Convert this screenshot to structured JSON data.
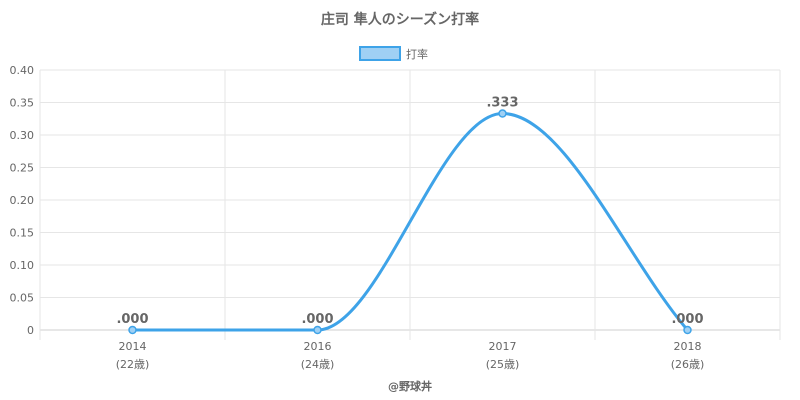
{
  "chart_data": {
    "type": "line",
    "title": "庄司 隼人のシーズン打率",
    "categories": [
      "2014",
      "2016",
      "2017",
      "2018"
    ],
    "category_sublabels": [
      "(22歳)",
      "(24歳)",
      "(25歳)",
      "(26歳)"
    ],
    "series": [
      {
        "name": "打率",
        "values": [
          0.0,
          0.0,
          0.333,
          0.0
        ],
        "labels": [
          ".000",
          ".000",
          ".333",
          ".000"
        ]
      }
    ],
    "ylim": [
      0,
      0.4
    ],
    "yticks": [
      0,
      0.05,
      0.1,
      0.15,
      0.2,
      0.25,
      0.3,
      0.35,
      0.4
    ],
    "ytick_labels": [
      "0",
      "0.05",
      "0.10",
      "0.15",
      "0.20",
      "0.25",
      "0.30",
      "0.35",
      "0.40"
    ],
    "xlabel": "",
    "ylabel": "",
    "grid": true,
    "legend_position": "top",
    "colors": {
      "line": "#3ea3e8",
      "legend_fill": "#9fd0f4",
      "grid": "#e6e6e6",
      "text": "#666666"
    },
    "credit": "@野球丼"
  }
}
